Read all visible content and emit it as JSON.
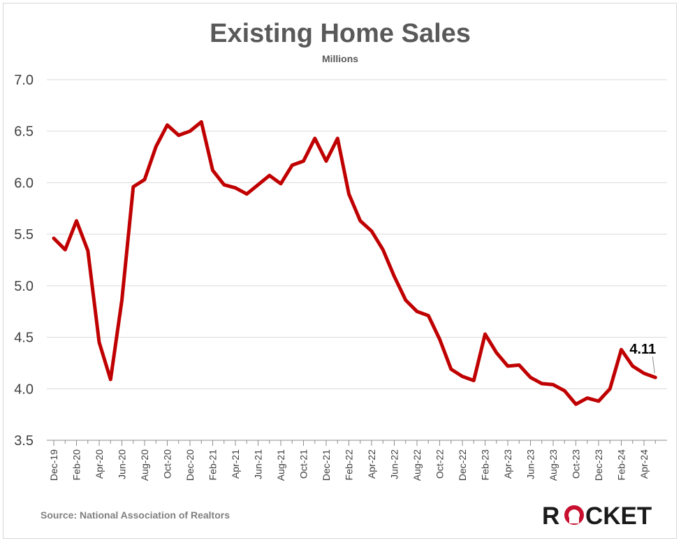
{
  "chart_data": {
    "type": "line",
    "title": "Existing Home Sales",
    "subtitle": "Millions",
    "xlabel": "",
    "ylabel": "",
    "ylim": [
      3.5,
      7.0
    ],
    "yticks": [
      "3.5",
      "4.0",
      "4.5",
      "5.0",
      "5.5",
      "6.0",
      "6.5",
      "7.0"
    ],
    "grid": true,
    "x": [
      "Dec-19",
      "Jan-20",
      "Feb-20",
      "Mar-20",
      "Apr-20",
      "May-20",
      "Jun-20",
      "Jul-20",
      "Aug-20",
      "Sep-20",
      "Oct-20",
      "Nov-20",
      "Dec-20",
      "Jan-21",
      "Feb-21",
      "Mar-21",
      "Apr-21",
      "May-21",
      "Jun-21",
      "Jul-21",
      "Aug-21",
      "Sep-21",
      "Oct-21",
      "Nov-21",
      "Dec-21",
      "Jan-22",
      "Feb-22",
      "Mar-22",
      "Apr-22",
      "May-22",
      "Jun-22",
      "Jul-22",
      "Aug-22",
      "Sep-22",
      "Oct-22",
      "Nov-22",
      "Dec-22",
      "Jan-23",
      "Feb-23",
      "Mar-23",
      "Apr-23",
      "May-23",
      "Jun-23",
      "Jul-23",
      "Aug-23",
      "Sep-23",
      "Oct-23",
      "Nov-23",
      "Dec-23",
      "Jan-24",
      "Feb-24",
      "Mar-24",
      "Apr-24",
      "May-24"
    ],
    "xtick_labels": [
      "Dec-19",
      "Feb-20",
      "Apr-20",
      "Jun-20",
      "Aug-20",
      "Oct-20",
      "Dec-20",
      "Feb-21",
      "Apr-21",
      "Jun-21",
      "Aug-21",
      "Oct-21",
      "Dec-21",
      "Feb-22",
      "Apr-22",
      "Jun-22",
      "Aug-22",
      "Oct-22",
      "Dec-22",
      "Feb-23",
      "Apr-23",
      "Jun-23",
      "Aug-23",
      "Oct-23",
      "Dec-23",
      "Feb-24",
      "Apr-24"
    ],
    "series": [
      {
        "name": "Existing Home Sales",
        "color": "#c00000",
        "values": [
          5.46,
          5.35,
          5.63,
          5.34,
          4.45,
          4.09,
          4.86,
          5.96,
          6.03,
          6.35,
          6.56,
          6.46,
          6.5,
          6.59,
          6.12,
          5.98,
          5.95,
          5.89,
          5.98,
          6.07,
          5.99,
          6.17,
          6.21,
          6.43,
          6.21,
          6.43,
          5.89,
          5.63,
          5.53,
          5.35,
          5.09,
          4.86,
          4.75,
          4.71,
          4.48,
          4.19,
          4.12,
          4.08,
          4.53,
          4.35,
          4.22,
          4.23,
          4.11,
          4.05,
          4.04,
          3.98,
          3.85,
          3.91,
          3.88,
          4.0,
          4.38,
          4.22,
          4.15,
          4.11
        ]
      }
    ],
    "annotation": {
      "label": "4.11",
      "point": "May-24"
    },
    "source": "Source: National Association of Realtors"
  },
  "logo": {
    "text": "ROCKET",
    "prefix": "R",
    "suffix": "CKET",
    "accent": "#c8102e",
    "color": "#1a1a1a"
  },
  "colors": {
    "grid": "#d9d9d9",
    "axis": "#8c8c8c",
    "title": "#595959",
    "text": "#404040"
  }
}
